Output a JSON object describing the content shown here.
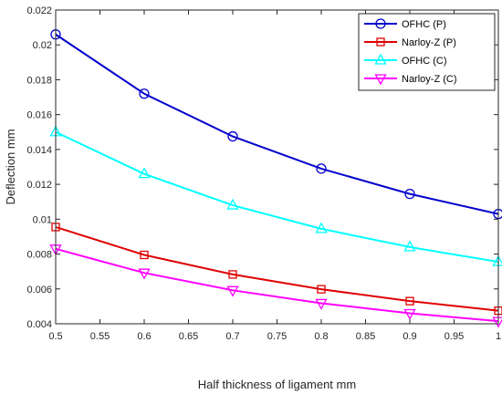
{
  "chart_data": {
    "type": "line",
    "xlabel": "Half thickness of ligament mm",
    "ylabel": "Deflection mm",
    "xlim": [
      0.5,
      1.0
    ],
    "ylim": [
      0.004,
      0.022
    ],
    "xticks": [
      0.5,
      0.55,
      0.6,
      0.65,
      0.7,
      0.75,
      0.8,
      0.85,
      0.9,
      0.95,
      1.0
    ],
    "xtick_labels": [
      "0.5",
      "0.55",
      "0.6",
      "0.65",
      "0.7",
      "0.75",
      "0.8",
      "0.85",
      "0.9",
      "0.95",
      "1"
    ],
    "yticks": [
      0.004,
      0.006,
      0.008,
      0.01,
      0.012,
      0.014,
      0.016,
      0.018,
      0.02,
      0.022
    ],
    "ytick_labels": [
      "0.004",
      "0.006",
      "0.008",
      "0.01",
      "0.012",
      "0.014",
      "0.016",
      "0.018",
      "0.02",
      "0.022"
    ],
    "grid": false,
    "legend_position": "top-right",
    "x": [
      0.5,
      0.6,
      0.7,
      0.8,
      0.9,
      1.0
    ],
    "series": [
      {
        "name": "OFHC (P)",
        "color": "#0000cc",
        "marker": "circle",
        "values": [
          0.0206,
          0.0172,
          0.01475,
          0.0129,
          0.01145,
          0.0103
        ]
      },
      {
        "name": "Narloy-Z (P)",
        "color": "#e00000",
        "marker": "square",
        "values": [
          0.00955,
          0.00795,
          0.00683,
          0.00598,
          0.0053,
          0.00475
        ]
      },
      {
        "name": "OFHC (C)",
        "color": "#00ffff",
        "marker": "triangle-up",
        "values": [
          0.015,
          0.0126,
          0.0108,
          0.00945,
          0.0084,
          0.00755
        ]
      },
      {
        "name": "Narloy-Z (C)",
        "color": "#ff00ff",
        "marker": "triangle-down",
        "values": [
          0.0083,
          0.00692,
          0.00592,
          0.00518,
          0.0046,
          0.00415
        ]
      }
    ]
  }
}
